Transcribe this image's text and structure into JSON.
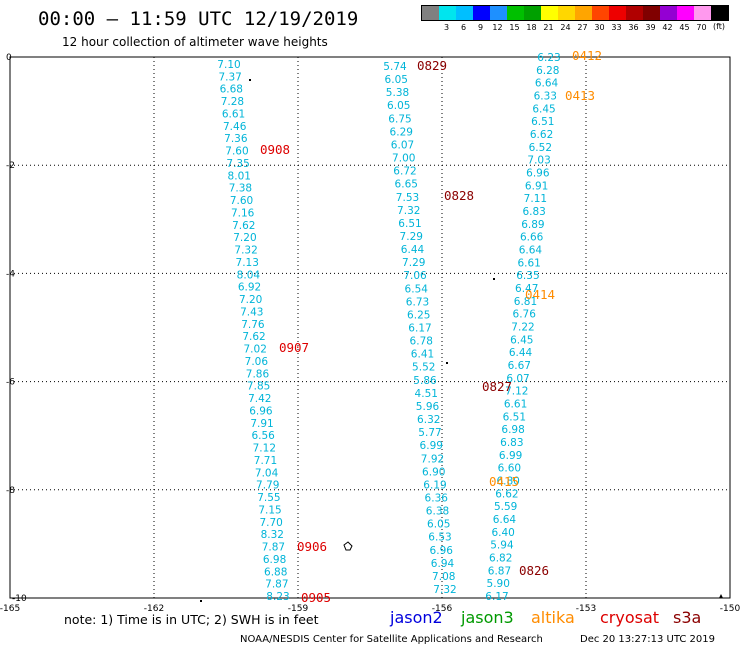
{
  "header": {
    "title": "00:00 – 11:59 UTC 12/19/2019",
    "subtitle": "12 hour collection of altimeter wave heights"
  },
  "legend": {
    "colors": [
      "#808080",
      "#00e5ee",
      "#00bfff",
      "#0000ff",
      "#1e90ff",
      "#00c000",
      "#00a000",
      "#ffff00",
      "#ffd700",
      "#ffa500",
      "#ff4500",
      "#ee0000",
      "#b00000",
      "#800000",
      "#9400d3",
      "#ff00ff",
      "#ff99ee",
      "#000000"
    ],
    "labels": [
      "",
      "3",
      "6",
      "9",
      "12",
      "15",
      "18",
      "21",
      "24",
      "27",
      "30",
      "33",
      "36",
      "39",
      "42",
      "45",
      "70",
      ""
    ],
    "unit": "(ft)"
  },
  "axes": {
    "y_tick_labels": [
      "0",
      "-2",
      "-4",
      "-6",
      "-8",
      "-10"
    ],
    "x_tick_labels": [
      "-165",
      "-162",
      "-159",
      "-156",
      "-153",
      "-150"
    ]
  },
  "colors": {
    "wave": "#00b4d8",
    "time_cryosat": "#dd0000",
    "time_altika": "#ff8c00",
    "time_s3a": "#8b0000",
    "grid": "#000000"
  },
  "tracks": [
    {
      "values": [
        "7.10",
        "7.37",
        "6.68",
        "7.28",
        "6.61",
        "7.46",
        "7.36",
        "7.60",
        "7.35",
        "8.01",
        "7.38",
        "7.60",
        "7.16",
        "7.62",
        "7.20",
        "7.32",
        "7.13",
        "8.04",
        "6.92",
        "7.20",
        "7.43",
        "7.76",
        "7.62",
        "7.02",
        "7.06",
        "7.86",
        "7.85",
        "7.42",
        "6.96",
        "7.91",
        "6.56",
        "7.12",
        "7.71",
        "7.04",
        "7.79",
        "7.55",
        "7.15",
        "7.70",
        "8.32",
        "7.87",
        "6.98",
        "6.88",
        "7.87",
        "8.23"
      ]
    },
    {
      "values": [
        "5.74",
        "6.05",
        "5.38",
        "6.05",
        "6.75",
        "6.29",
        "6.07",
        "7.00",
        "6.72",
        "6.65",
        "7.53",
        "7.32",
        "6.51",
        "7.29",
        "6.44",
        "7.29",
        "7.06",
        "6.54",
        "6.73",
        "6.25",
        "6.17",
        "6.78",
        "6.41",
        "5.52",
        "5.86",
        "4.51",
        "5.96",
        "6.32",
        "5.77",
        "6.99",
        "7.92",
        "6.90",
        "6.19",
        "6.36",
        "6.38",
        "6.05",
        "6.53",
        "6.96",
        "6.94",
        "7.08",
        "7.32"
      ]
    },
    {
      "values": [
        "6.23",
        "6.28",
        "6.64",
        "6.33",
        "6.45",
        "6.51",
        "6.62",
        "6.52",
        "7.03",
        "6.96",
        "6.91",
        "7.11",
        "6.83",
        "6.89",
        "6.66",
        "6.64",
        "6.61",
        "6.35",
        "6.47",
        "6.81",
        "6.76",
        "7.22",
        "6.45",
        "6.44",
        "6.67",
        "6.07",
        "7.12",
        "6.61",
        "6.51",
        "6.98",
        "6.83",
        "6.99",
        "6.60",
        "6.80",
        "6.62",
        "5.59",
        "6.64",
        "6.40",
        "5.94",
        "6.82",
        "6.87",
        "5.90",
        "6.17"
      ]
    }
  ],
  "time_labels": [
    {
      "text": "0829",
      "sat": "s3a"
    },
    {
      "text": "0412",
      "sat": "altika"
    },
    {
      "text": "0413",
      "sat": "altika"
    },
    {
      "text": "0908",
      "sat": "cryosat"
    },
    {
      "text": "0828",
      "sat": "s3a"
    },
    {
      "text": "0414",
      "sat": "altika"
    },
    {
      "text": "0907",
      "sat": "cryosat"
    },
    {
      "text": "0827",
      "sat": "s3a"
    },
    {
      "text": "0415",
      "sat": "altika"
    },
    {
      "text": "0906",
      "sat": "cryosat"
    },
    {
      "text": "0826",
      "sat": "s3a"
    },
    {
      "text": "0905",
      "sat": "cryosat"
    }
  ],
  "footer": {
    "note": "note:  1) Time is in UTC;  2) SWH is in feet",
    "satellites": [
      {
        "name": "jason2",
        "color": "#0000dd"
      },
      {
        "name": "jason3",
        "color": "#009900"
      },
      {
        "name": "altika",
        "color": "#ff8c00"
      },
      {
        "name": "cryosat",
        "color": "#dd0000"
      },
      {
        "name": "s3a",
        "color": "#8b0000"
      }
    ],
    "credit": "NOAA/NESDIS Center for Satellite Applications and Research",
    "timestamp": "Dec 20 13:27:13 UTC 2019"
  }
}
